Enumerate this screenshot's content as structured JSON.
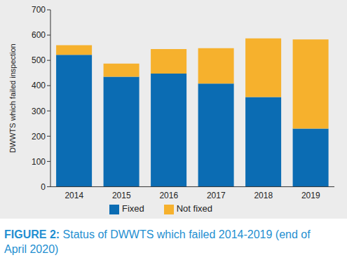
{
  "chart_data": {
    "type": "bar",
    "title": "FIGURE 2: Status of DWWTS which failed 2014-2019 (end of April 2020)",
    "y_label": "DWWTS which failed inspection",
    "categories": [
      "2014",
      "2015",
      "2016",
      "2017",
      "2018",
      "2019"
    ],
    "series": [
      {
        "name": "Fixed",
        "color": "#0b6cb3",
        "values": [
          522,
          435,
          448,
          408,
          355,
          230
        ]
      },
      {
        "name": "Not fixed",
        "color": "#f6b12d",
        "values": [
          38,
          52,
          97,
          140,
          232,
          353
        ]
      }
    ],
    "ylim": [
      0,
      700
    ],
    "yticks": [
      0,
      100,
      200,
      300,
      400,
      500,
      600,
      700
    ],
    "stacked": true,
    "grid": false,
    "legend": "bottom"
  }
}
